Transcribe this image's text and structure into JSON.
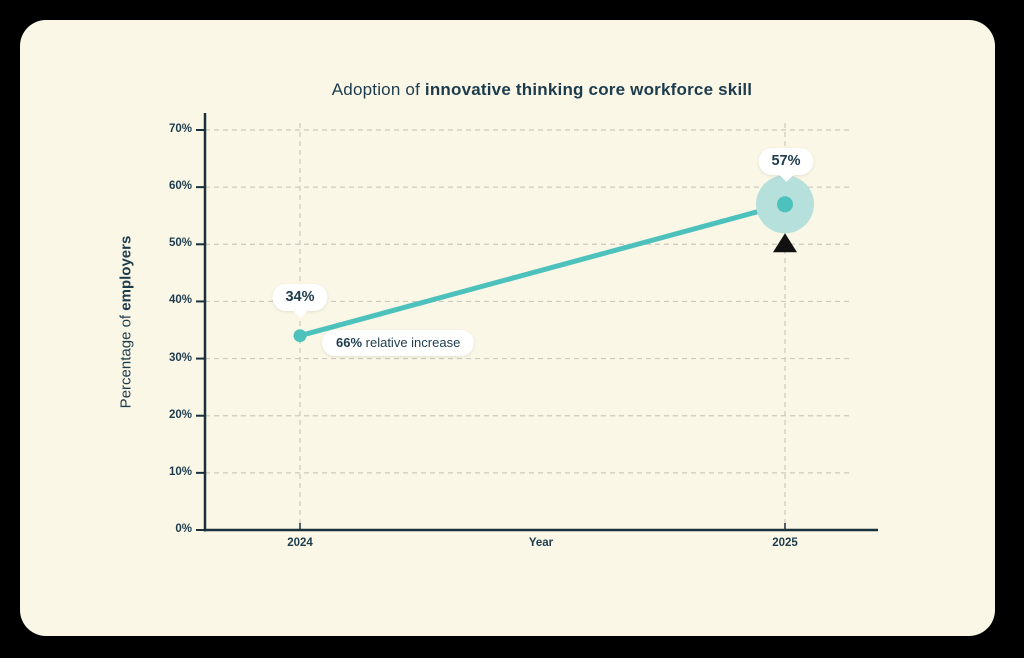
{
  "title": {
    "prefix": "Adoption of ",
    "emphasis": "innovative thinking core workforce skill"
  },
  "y_axis": {
    "title_prefix": "Percentage of ",
    "title_emphasis": "employers",
    "tick_labels": [
      "0%",
      "10%",
      "20%",
      "30%",
      "40%",
      "50%",
      "60%",
      "70%"
    ]
  },
  "x_axis": {
    "title": "Year",
    "tick_labels": [
      "2024",
      "2025"
    ]
  },
  "annotations": {
    "start_value_label": "34%",
    "end_value_label": "57%",
    "increase_value": "66%",
    "increase_text": " relative increase"
  },
  "colors": {
    "page_bg": "#000000",
    "card_bg": "#FBF7E7",
    "navy": "#1C3C4D",
    "axis": "#1A303B",
    "grid": "#CCC9BE",
    "teal": "#4DC1BC",
    "halo": "#B6E0DB",
    "marker": "#111111",
    "bubble_bg": "#FFFFFF"
  },
  "chart_data": {
    "type": "line",
    "title": "Adoption of innovative thinking core workforce skill",
    "xlabel": "Year",
    "ylabel": "Percentage of employers",
    "categories": [
      "2024",
      "2025"
    ],
    "series": [
      {
        "name": "Percentage of employers",
        "values": [
          34,
          57
        ]
      }
    ],
    "ylim": [
      0,
      70
    ],
    "y_ticks": [
      0,
      10,
      20,
      30,
      40,
      50,
      60,
      70
    ],
    "grid": true,
    "legend": false,
    "annotations": [
      {
        "target": "2024",
        "text": "34%"
      },
      {
        "target": "2025",
        "text": "57%"
      },
      {
        "between": [
          "2024",
          "2025"
        ],
        "text": "66% relative increase"
      }
    ]
  }
}
